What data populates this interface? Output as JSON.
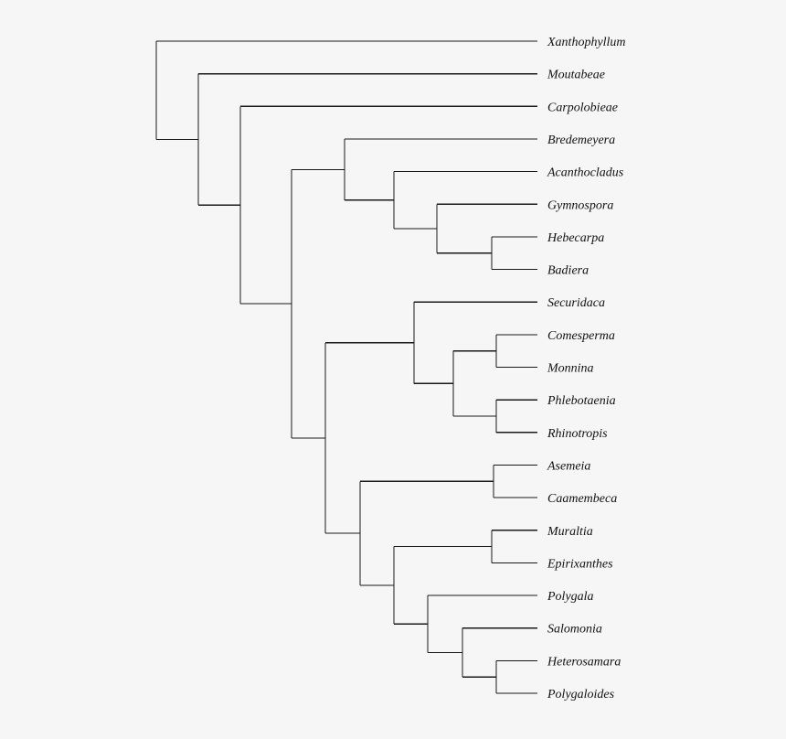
{
  "tree": {
    "taxa": [
      "Xanthophyllum",
      "Moutabeae",
      "Carpolobieae",
      "Bredemeyera",
      "Acanthocladus",
      "Gymnospora",
      "Hebecarpa",
      "Badiera",
      "Securidaca",
      "Comesperma",
      "Monnina",
      "Phlebotaenia",
      "Rhinotropis",
      "Asemeia",
      "Caamembeca",
      "Muraltia",
      "Epirixanthes",
      "Polygala",
      "Salomonia",
      "Heterosamara",
      "Polygaloides"
    ],
    "newick": "(Xanthophyllum,(Moutabeae,(Carpolobieae,((Bredemeyera,(Acanthocladus,(Gymnospora,(Hebecarpa,Badiera)))),((Securidaca,((Comesperma,Monnina),(Phlebotaenia,Rhinotropis))),((Asemeia,Caamembeca),((Muraltia,Epirixanthes),(Polygala,(Salomonia,(Heterosamara,Polygaloides))))))))))"
  }
}
